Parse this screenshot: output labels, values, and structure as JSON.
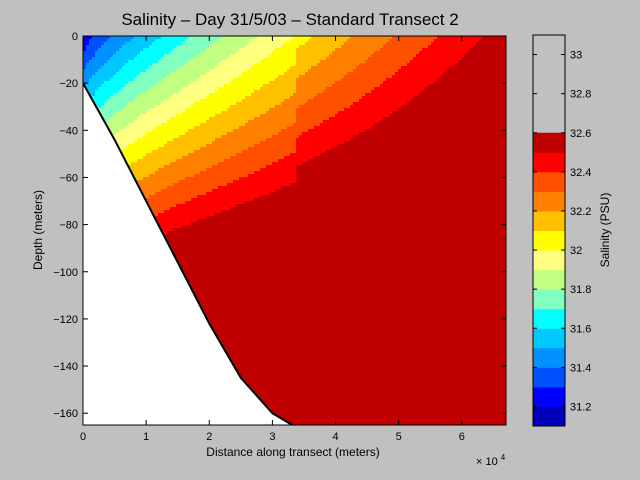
{
  "chart_data": {
    "type": "contour",
    "title": "Salinity – Day 31/5/03 – Standard Transect 2",
    "xlabel": "Distance along transect (meters)",
    "ylabel": "Depth (meters)",
    "x_exponent_label": "× 10",
    "x_exponent_power": "4",
    "xlim": [
      0,
      67000
    ],
    "ylim": [
      -165,
      0
    ],
    "x_tick_values": [
      0,
      10000,
      20000,
      30000,
      40000,
      50000,
      60000
    ],
    "x_tick_labels": [
      "0",
      "1",
      "2",
      "3",
      "4",
      "5",
      "6"
    ],
    "y_ticks": [
      0,
      -20,
      -40,
      -60,
      -80,
      -100,
      -120,
      -140,
      -160
    ],
    "y_tick_labels": [
      "0",
      "−20",
      "−40",
      "−60",
      "−80",
      "−100",
      "−120",
      "−140",
      "−160"
    ],
    "seabed_profile": {
      "x": [
        0,
        5000,
        10000,
        15000,
        20000,
        25000,
        30000,
        35000,
        40000,
        45000,
        50000,
        55000,
        60000,
        63000,
        67000
      ],
      "depth": [
        -20,
        -44,
        -70,
        -96,
        -122,
        -145,
        -160,
        -168,
        -176,
        -178,
        -175,
        -171,
        -167,
        -166,
        -170
      ]
    },
    "colorbar": {
      "label": "Salinity (PSU)",
      "min": 31.1,
      "max": 33.1,
      "level_step": 0.1,
      "tick_values": [
        31.2,
        31.4,
        31.6,
        31.8,
        32.0,
        32.2,
        32.4,
        32.6,
        32.8,
        33.0
      ],
      "tick_labels": [
        "31.2",
        "31.4",
        "31.6",
        "31.8",
        "32",
        "32.2",
        "32.4",
        "32.6",
        "32.8",
        "33"
      ],
      "colors": [
        "#0000bb",
        "#0000ff",
        "#0050ff",
        "#0090ff",
        "#00c8ff",
        "#00ffff",
        "#80ffc0",
        "#c0ff80",
        "#ffff80",
        "#ffff00",
        "#ffc000",
        "#ff8000",
        "#ff5000",
        "#ff0000",
        "#c00000"
      ]
    }
  }
}
